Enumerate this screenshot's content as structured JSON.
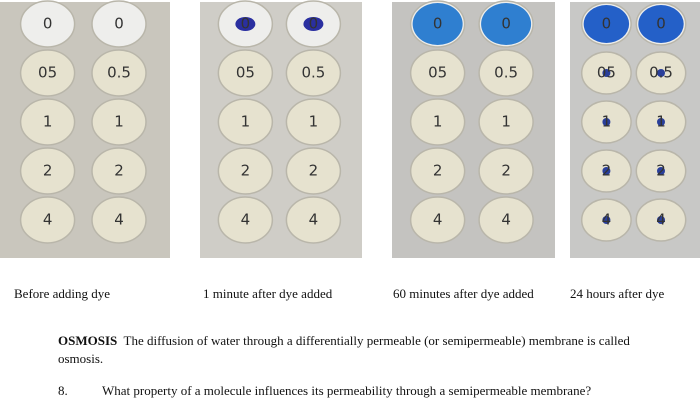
{
  "panels": [
    {
      "caption": "Before adding dye",
      "dish_labels": [
        "0",
        "0",
        "05",
        "0.5",
        "1",
        "1",
        "2",
        "2",
        "4",
        "4"
      ]
    },
    {
      "caption": "1 minute after dye added",
      "dish_labels": [
        "0",
        "0",
        "05",
        "0.5",
        "1",
        "1",
        "2",
        "2",
        "4",
        "4"
      ]
    },
    {
      "caption": "60 minutes after dye added",
      "dish_labels": [
        "0",
        "0",
        "05",
        "0.5",
        "1",
        "1",
        "2",
        "2",
        "4",
        "4"
      ]
    },
    {
      "caption": "24 hours after dye",
      "dish_labels": [
        "0",
        "0",
        "05",
        "0.5",
        "1",
        "1",
        "2",
        "2",
        "4",
        "4"
      ]
    }
  ],
  "osmosis": {
    "term": "OSMOSIS",
    "text": "The diffusion of water through a differentially permeable (or semipermeable) membrane is called osmosis."
  },
  "question": {
    "number": "8.",
    "text": "What property of a molecule influences its permeability through a semipermeable membrane?"
  }
}
